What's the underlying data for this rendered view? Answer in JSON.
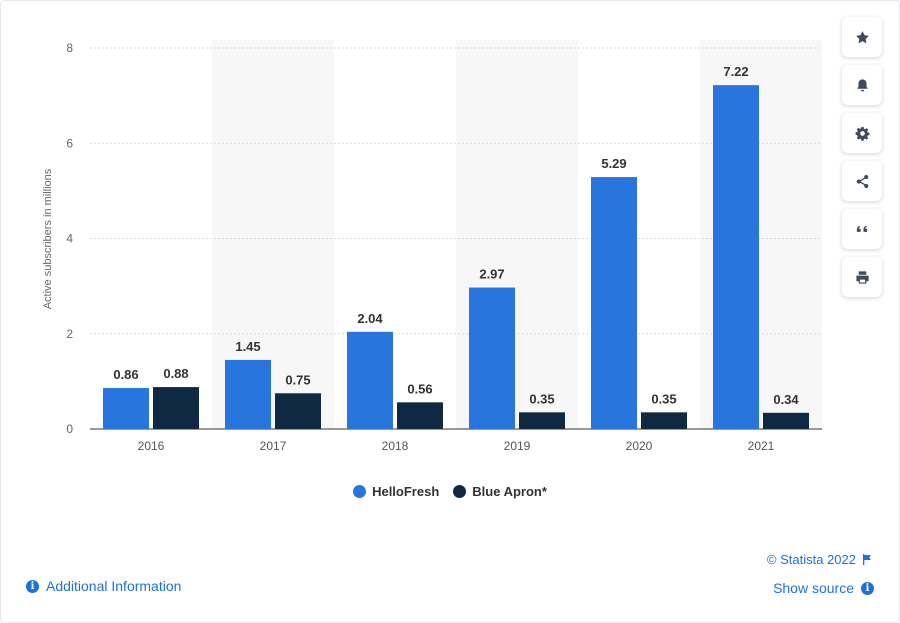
{
  "chart_data": {
    "type": "bar",
    "categories": [
      "2016",
      "2017",
      "2018",
      "2019",
      "2020",
      "2021"
    ],
    "series": [
      {
        "name": "HelloFresh",
        "values": [
          0.86,
          1.45,
          2.04,
          2.97,
          5.29,
          7.22
        ],
        "color": "#2876dd"
      },
      {
        "name": "Blue Apron*",
        "values": [
          0.88,
          0.75,
          0.56,
          0.35,
          0.35,
          0.34
        ],
        "color": "#0f2942"
      }
    ],
    "ylabel": "Active subscribers in millions",
    "ylim": [
      0,
      8
    ],
    "yticks": [
      "0",
      "2",
      "4",
      "6",
      "8"
    ],
    "grid": true,
    "legend": "bottom-center"
  },
  "tools": [
    {
      "name": "star-icon"
    },
    {
      "name": "bell-icon"
    },
    {
      "name": "gear-icon"
    },
    {
      "name": "share-icon"
    },
    {
      "name": "quote-icon"
    },
    {
      "name": "print-icon"
    }
  ],
  "footer": {
    "additional_info": "Additional Information",
    "copyright": "© Statista 2022",
    "show_source": "Show source"
  },
  "colors": {
    "link": "#1b72d8",
    "band": "#f7f7f8"
  }
}
